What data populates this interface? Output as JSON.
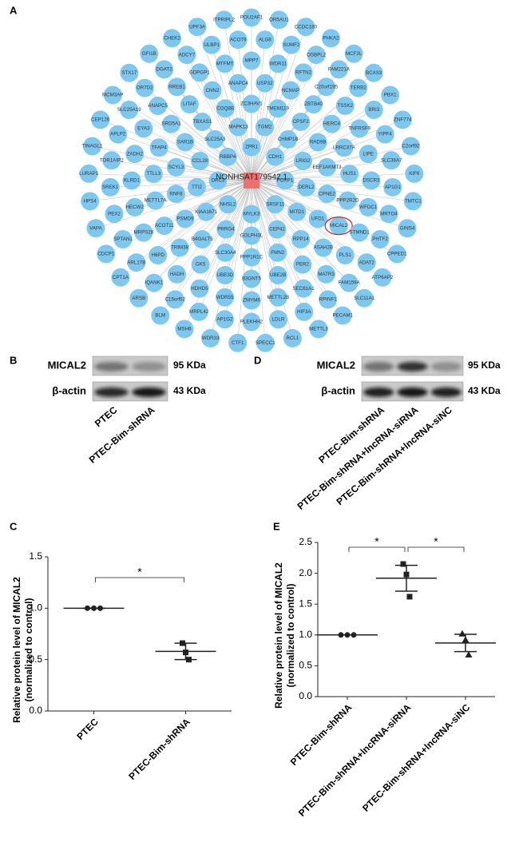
{
  "panel_labels": [
    "A",
    "B",
    "C",
    "D",
    "E"
  ],
  "network": {
    "center": "NONHSAT179542.1",
    "nodes": [
      "ZPR1",
      "CDH1",
      "FOXP1",
      "SRSF11",
      "MYLK3",
      "NHSL2",
      "DRC3",
      "RBBP4",
      "TGM2",
      "CHMP1B",
      "LRIG2",
      "DERL2",
      "MITD1",
      "CEP41",
      "GOLPH3L",
      "PRRG4",
      "KIAA1671",
      "TTI2",
      "CCL28",
      "SLC25A3",
      "MAPK13",
      "ZC3HAV1",
      "TMEM119",
      "CPSF2",
      "RAD9B",
      "EEF1AKMT3",
      "CPNE2",
      "UFD1",
      "RPP14",
      "FMN2",
      "PPP1R1C",
      "SLC30A4",
      "B4GALT5",
      "PSMD9",
      "RNF8",
      "SCYL3",
      "SAR1B",
      "TBXAS1",
      "COQ8B",
      "USP32",
      "NCMAP",
      "ZBTB40",
      "HERC4",
      "LRRC37A",
      "HUS1",
      "PPP2R2D",
      {
        "label": "MICAL2",
        "highlight": true
      },
      "ASAH2B",
      "PER2",
      "UBE2B",
      "B3GNT5",
      "UBE3D",
      "GK5",
      "TRIM38",
      "ACOT11",
      "METTL7A",
      "TTLL3",
      "TFAP4",
      "SRD5A1",
      "LITAF",
      "CNN2",
      "ANAPC4",
      "MPP7",
      "WDR11",
      "RFTN2",
      "C20orf195",
      "TSSK2",
      "TNFRSF9",
      "LIPE",
      "DSCR3",
      "WFDC1",
      "STMND1",
      "PLS1",
      "MATR3",
      "SEC61A1",
      "METTL2B",
      "ZMYM6",
      "WDR55",
      "HDHD5",
      "HADH",
      "H6PD",
      "MRPS28",
      "HECW2",
      "KLRD1",
      "ZADH2",
      "EYA3",
      "ANAPC5",
      "RREB1",
      "GDPGP1",
      "MTFMT",
      "ALG8",
      "SUMF2",
      "OSBPL2",
      "FAM221A",
      "TERB2",
      "BRI3",
      "YIPF4",
      "SLC38A7",
      "AP1G1",
      "MRTO4",
      "PHTF2",
      "ADAT2",
      "FAM159A",
      "RPINF1",
      "HIF3A",
      "LDLR",
      "PLEKHH2",
      "AP1G2",
      "MRPL42",
      "C15orf52",
      "IQANK1",
      "ARL17B",
      "SPTAN1",
      "PEX2",
      "SREK1",
      "TOR1AIP2",
      "APLP2",
      "SLC25A19",
      "OR7D2",
      "DGAT2",
      "ADCY7",
      "ULBP1",
      "ACOT9",
      "POU2AF1",
      "OR5AU1",
      "CCDC180",
      "PHKA2",
      "MCF2L",
      "BCAS3",
      "PBX1",
      "ZNF774",
      "C2orf92",
      "KIF6",
      "TMTC1",
      "GINS4",
      "CPPED1",
      "ATP6AP2",
      "SLC11A1",
      "PECAM1",
      "METTL3",
      "RCL1",
      "SPECC1",
      "CTF1",
      "WDR33",
      "MSH6",
      "BLM",
      "ARSB",
      "CPT1A",
      "CDCP1",
      "VAPA",
      "HPS4",
      "LURAP1",
      "TINAGL1",
      "CEP126",
      "MCM3AP",
      "STX17",
      "GFI1B",
      "CHEK2",
      "UPF3A",
      "ITPRIPL2"
    ]
  },
  "blot_b": {
    "rows": [
      "MICAL2",
      "β-actin"
    ],
    "sizes": [
      "95 KDa",
      "43 KDa"
    ],
    "lanes": [
      "PTEC",
      "PTEC-Bim-shRNA"
    ]
  },
  "blot_d": {
    "rows": [
      "MICAL2",
      "β-actin"
    ],
    "sizes": [
      "95 KDa",
      "43 KDa"
    ],
    "lanes": [
      "PTEC-Bim-shRNA",
      "PTEC-Bim-shRNA+lncRNA-siRNA",
      "PTEC-Bim-shRNA+lncRNA-siNC"
    ]
  },
  "chart_data": [
    {
      "type": "scatter",
      "ylabel": [
        "Relative protein level of MICAL2",
        "(normalized to control)"
      ],
      "categories": [
        "PTEC",
        "PTEC-Bim-shRNA"
      ],
      "values": [
        [
          1,
          1,
          1
        ],
        [
          0.66,
          0.57,
          0.5
        ]
      ],
      "means": [
        1,
        0.58
      ],
      "errors": [
        0,
        0.08
      ],
      "markers": [
        "circle",
        "square"
      ],
      "color": "#222",
      "ylim": [
        0,
        1.5
      ],
      "yticks": [
        {
          "value": 0,
          "label": "0.0"
        },
        0.5,
        {
          "value": 1,
          "label": "1.0"
        },
        1.5
      ],
      "annotations": [
        {
          "text": "*",
          "from": 0,
          "to": 1
        }
      ]
    },
    {
      "type": "scatter",
      "ylabel": [
        "Relative protein level of MICAL2",
        "(normalized to control)"
      ],
      "categories": [
        "PTEC-Bim-shRNA",
        "PTEC-Bim-shRNA+lncRNA-siRNA",
        "PTEC-Bim-shRNA+lncRNA-siNC"
      ],
      "values": [
        [
          1,
          1,
          1
        ],
        [
          2.15,
          1.98,
          1.62
        ],
        [
          1.02,
          0.92,
          0.68
        ]
      ],
      "means": [
        1,
        1.92,
        0.87
      ],
      "errors": [
        0,
        0.21,
        0.14
      ],
      "markers": [
        "circle",
        "square",
        "triangle"
      ],
      "color": "#222",
      "ylim": [
        0,
        2.5
      ],
      "yticks": [
        {
          "value": 0,
          "label": "0.0"
        },
        0.5,
        {
          "value": 1,
          "label": "1.0"
        },
        1.5,
        {
          "value": 2,
          "label": "2.0"
        },
        2.5
      ],
      "annotations": [
        {
          "text": "*",
          "from": 0,
          "to": 1
        },
        {
          "text": "*",
          "from": 1,
          "to": 2
        }
      ]
    }
  ]
}
